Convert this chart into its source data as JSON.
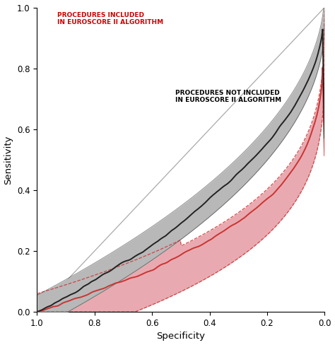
{
  "title": "",
  "xlabel": "Specificity",
  "ylabel": "Sensitivity",
  "xlim": [
    1.0,
    0.0
  ],
  "ylim": [
    0.0,
    1.0
  ],
  "xticks": [
    1.0,
    0.8,
    0.6,
    0.4,
    0.2,
    0.0
  ],
  "yticks": [
    0.0,
    0.2,
    0.4,
    0.6,
    0.8,
    1.0
  ],
  "label_included": "PROCEDURES INCLUDED\nIN EUROSCORE II ALGORITHM",
  "label_not_included": "PROCEDURES NOT INCLUDED\nIN EUROSCORE II ALGORITHM",
  "label_included_color": "#cc0000",
  "label_not_included_color": "#000000",
  "curve_included_color": "#cc3333",
  "curve_not_included_color": "#222222",
  "ci_included_color": "#e8aab0",
  "ci_not_included_color": "#b8b8b8",
  "diagonal_color": "#aaaaaa",
  "background_color": "#ffffff",
  "fig_facecolor": "#ffffff"
}
